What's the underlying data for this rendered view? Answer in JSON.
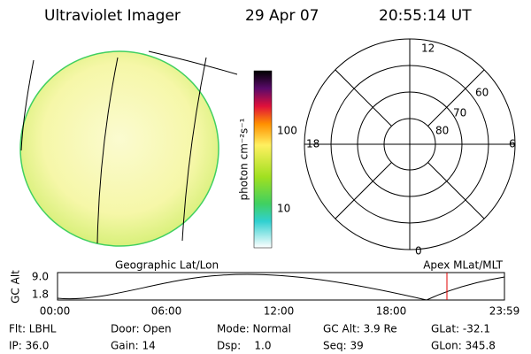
{
  "header": {
    "title": "Ultraviolet Imager",
    "date": "29 Apr 07",
    "time": "20:55:14 UT"
  },
  "colorbar": {
    "label": "photon cm⁻²s⁻¹",
    "ticks": [
      "100",
      "10"
    ]
  },
  "polar": {
    "hours": [
      "12",
      "18",
      "6",
      "0"
    ],
    "latitudes": [
      "60",
      "70",
      "80"
    ]
  },
  "orbit": {
    "left_label": "Geographic Lat/Lon",
    "right_label": "Apex MLat/MLT",
    "y_label": "GC Alt",
    "y_ticks": [
      "9.0",
      "1.8"
    ],
    "x_ticks": [
      "00:00",
      "06:00",
      "12:00",
      "18:00",
      "23:59"
    ]
  },
  "footer": {
    "rows": [
      [
        "Flt: LBHL",
        "Door: Open",
        "Mode: Normal",
        "GC Alt: 3.9 Re",
        "GLat: -32.1"
      ],
      [
        "IP: 36.0",
        "Gain: 14",
        "Dsp:    1.0",
        "Seq: 39",
        "GLon: 345.8"
      ]
    ]
  }
}
